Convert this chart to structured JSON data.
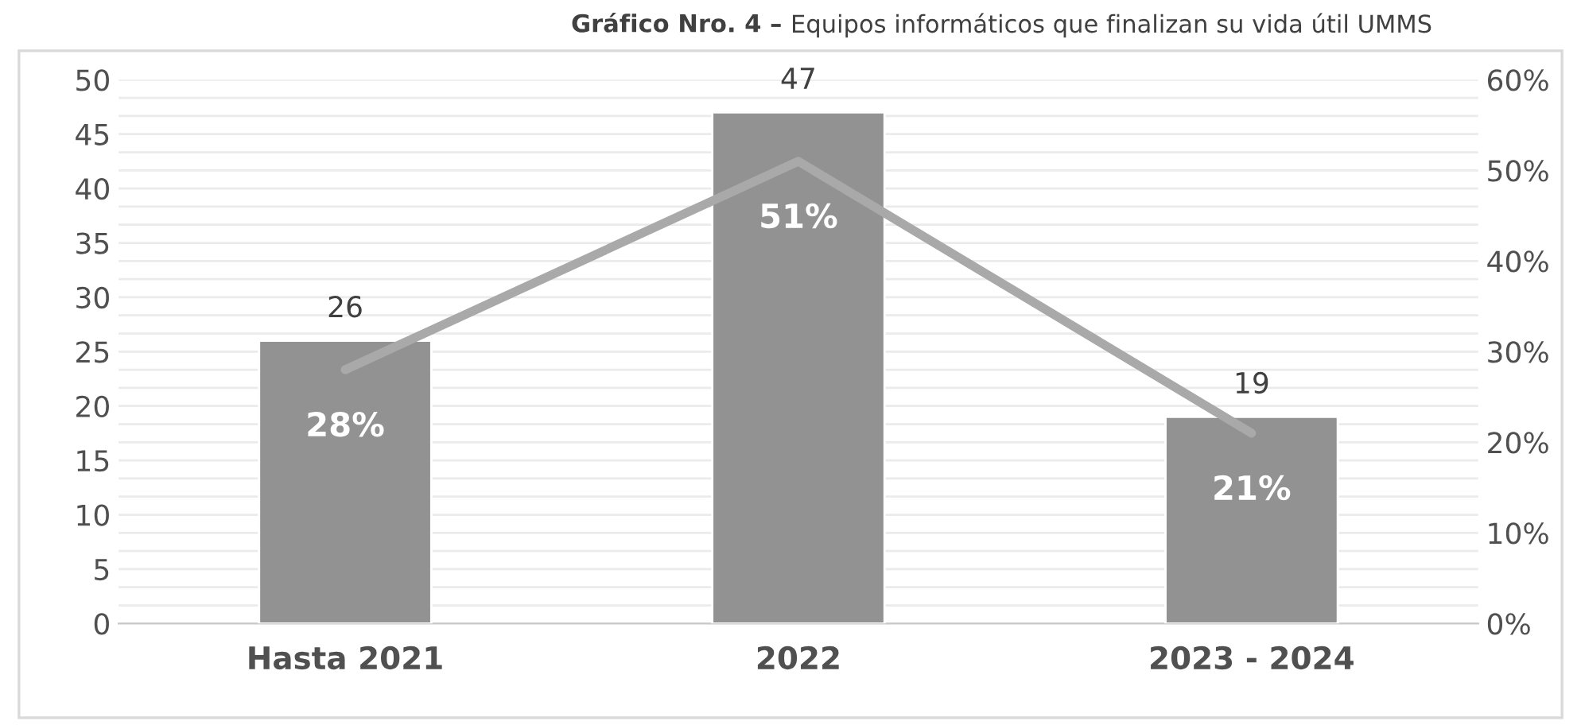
{
  "chart_data": {
    "type": "bar",
    "title": "Gráfico Nro. 4 – Equipos informáticos que finalizan su vida útil UMMS",
    "categories": [
      "Hasta 2021",
      "2022",
      "2023 - 2024"
    ],
    "series": [
      {
        "color": "#929292",
        "values": [
          26,
          47,
          19
        ],
        "data_labels": true
      },
      {
        "type": "line",
        "axis": "y2",
        "color": "#a9a9a9",
        "values": [
          28,
          51,
          21
        ],
        "value_labels": [
          "28%",
          "51%",
          "21%"
        ]
      }
    ],
    "ylim": [
      0,
      50
    ],
    "yticks": [
      0,
      5,
      10,
      15,
      20,
      25,
      30,
      35,
      40,
      45,
      50
    ],
    "y2lim": [
      0,
      60
    ],
    "y2ticks": [
      {
        "value": 0,
        "label": "0%"
      },
      {
        "value": 10,
        "label": "10%"
      },
      {
        "value": 20,
        "label": "20%"
      },
      {
        "value": 30,
        "label": "30%"
      },
      {
        "value": 40,
        "label": "40%"
      },
      {
        "value": 50,
        "label": "50%"
      },
      {
        "value": 60,
        "label": "60%"
      }
    ],
    "grid": "y",
    "legend": false,
    "line_style": "solid"
  }
}
